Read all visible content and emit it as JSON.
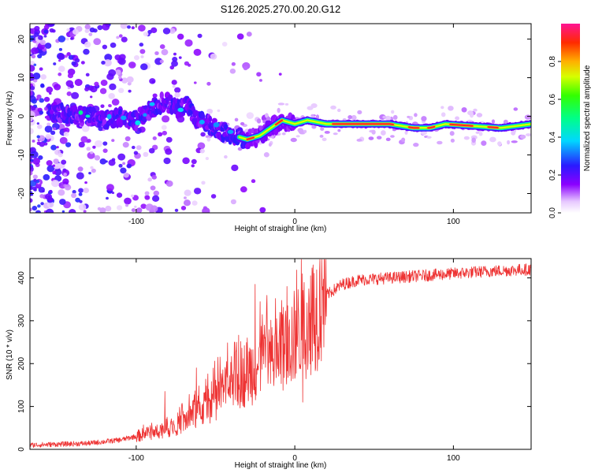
{
  "title": "S126.2025.270.00.20.G12",
  "chart_data": [
    {
      "type": "heatmap",
      "name": "spectrogram",
      "xlabel": "Height of straight line (km)",
      "ylabel": "Frequency (Hz)",
      "xlim": [
        -167,
        149
      ],
      "ylim": [
        -25,
        24
      ],
      "xticks": [
        -100,
        0,
        100
      ],
      "yticks": [
        -20,
        -10,
        0,
        10,
        20
      ],
      "colorbar": {
        "label": "Normalized spectral amplitude",
        "range": [
          0,
          1
        ],
        "ticks": [
          0.0,
          0.2,
          0.4,
          0.6,
          0.8
        ]
      },
      "ridge": [
        {
          "x": -167,
          "f": 2
        },
        {
          "x": -150,
          "f": 1
        },
        {
          "x": -130,
          "f": 0
        },
        {
          "x": -120,
          "f": -1
        },
        {
          "x": -110,
          "f": 0
        },
        {
          "x": -100,
          "f": -1
        },
        {
          "x": -90,
          "f": 2
        },
        {
          "x": -82,
          "f": 4
        },
        {
          "x": -75,
          "f": 2
        },
        {
          "x": -68,
          "f": 3
        },
        {
          "x": -62,
          "f": -1
        },
        {
          "x": -55,
          "f": -2
        },
        {
          "x": -45,
          "f": -4
        },
        {
          "x": -38,
          "f": -5
        },
        {
          "x": -30,
          "f": -6
        },
        {
          "x": -22,
          "f": -5
        },
        {
          "x": -15,
          "f": -3
        },
        {
          "x": -8,
          "f": -1
        },
        {
          "x": 0,
          "f": -2
        },
        {
          "x": 8,
          "f": -1
        },
        {
          "x": 20,
          "f": -2
        },
        {
          "x": 60,
          "f": -2
        },
        {
          "x": 75,
          "f": -3
        },
        {
          "x": 85,
          "f": -3
        },
        {
          "x": 95,
          "f": -2
        },
        {
          "x": 130,
          "f": -3
        },
        {
          "x": 149,
          "f": -2
        }
      ]
    },
    {
      "type": "line",
      "name": "snr",
      "xlabel": "Height of straight line (km)",
      "ylabel": "SNR (10 * v/v)",
      "xlim": [
        -167,
        149
      ],
      "ylim": [
        0,
        445
      ],
      "xticks": [
        -100,
        0,
        100
      ],
      "yticks": [
        0,
        100,
        200,
        300,
        400
      ],
      "color": "#ee3333",
      "trend": [
        {
          "x": -167,
          "y": 10
        },
        {
          "x": -130,
          "y": 14
        },
        {
          "x": -110,
          "y": 22
        },
        {
          "x": -95,
          "y": 35
        },
        {
          "x": -80,
          "y": 50
        },
        {
          "x": -70,
          "y": 65
        },
        {
          "x": -60,
          "y": 90
        },
        {
          "x": -50,
          "y": 120
        },
        {
          "x": -40,
          "y": 155
        },
        {
          "x": -30,
          "y": 180
        },
        {
          "x": -20,
          "y": 200
        },
        {
          "x": -10,
          "y": 225
        },
        {
          "x": 0,
          "y": 260
        },
        {
          "x": 10,
          "y": 310
        },
        {
          "x": 20,
          "y": 360
        },
        {
          "x": 30,
          "y": 385
        },
        {
          "x": 40,
          "y": 395
        },
        {
          "x": 60,
          "y": 400
        },
        {
          "x": 80,
          "y": 405
        },
        {
          "x": 100,
          "y": 410
        },
        {
          "x": 120,
          "y": 415
        },
        {
          "x": 149,
          "y": 420
        }
      ],
      "spikes": [
        {
          "x": -82,
          "y": 135
        },
        {
          "x": -62,
          "y": 190
        },
        {
          "x": -38,
          "y": 250
        },
        {
          "x": -30,
          "y": 260
        },
        {
          "x": -25,
          "y": 385
        },
        {
          "x": -18,
          "y": 270
        },
        {
          "x": -8,
          "y": 310
        },
        {
          "x": -5,
          "y": 380
        },
        {
          "x": 10,
          "y": 405
        },
        {
          "x": 5,
          "y": 110
        }
      ]
    }
  ]
}
